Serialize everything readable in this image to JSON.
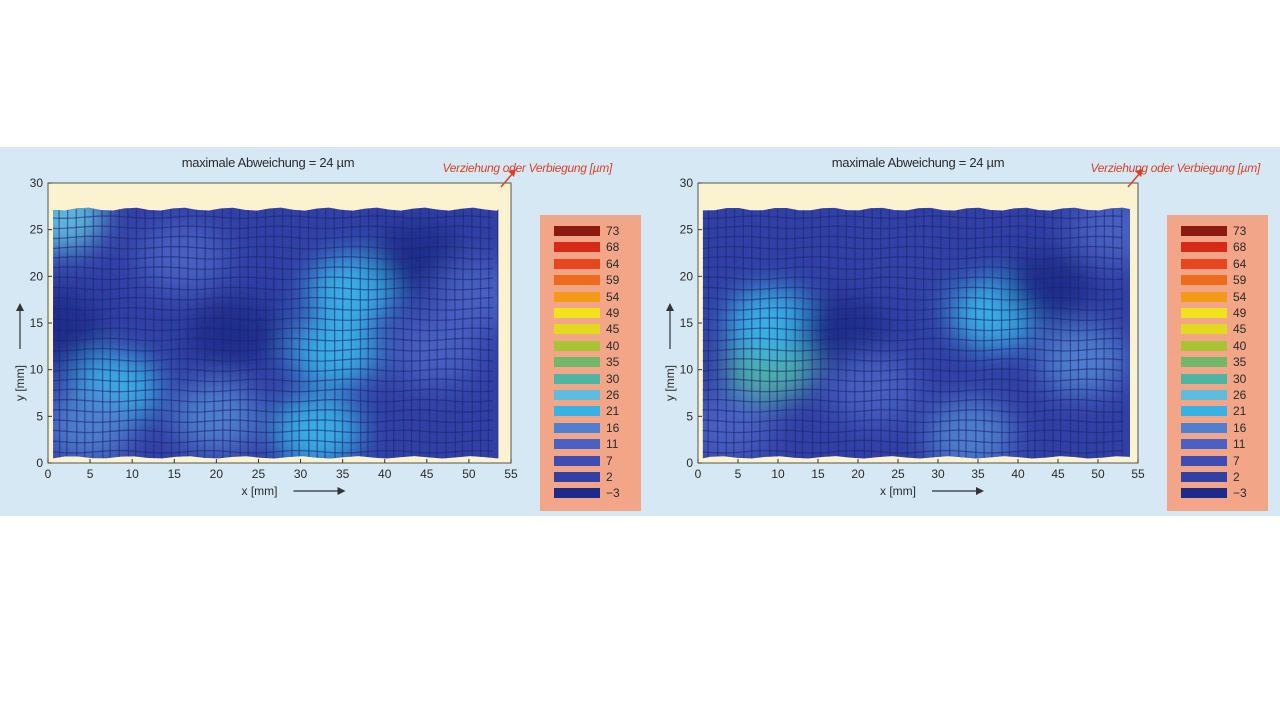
{
  "chart_data": [
    {
      "type": "heatmap",
      "title": "maximale Abweichung = 24 µm",
      "xlabel": "x [mm]",
      "ylabel": "y [mm]",
      "xlim": [
        0,
        55
      ],
      "ylim": [
        0,
        30
      ],
      "x_ticks": [
        "0",
        "5",
        "10",
        "15",
        "20",
        "25",
        "30",
        "35",
        "40",
        "45",
        "50",
        "55"
      ],
      "y_ticks": [
        "0",
        "5",
        "10",
        "15",
        "20",
        "25",
        "30"
      ],
      "colorbar_label": "Verziehung oder Verbiegung [µm]",
      "colorbar_levels": [
        "73",
        "68",
        "64",
        "59",
        "54",
        "49",
        "45",
        "40",
        "35",
        "30",
        "26",
        "21",
        "16",
        "11",
        "7",
        "2",
        "−3"
      ],
      "colorbar_colors": [
        "#8c1a0e",
        "#d72a1a",
        "#e8461e",
        "#ee6b1e",
        "#f39a17",
        "#f2e21c",
        "#e3da1f",
        "#a8c435",
        "#71b86a",
        "#4fb5a3",
        "#5fbcdc",
        "#38b2e6",
        "#4f7fd0",
        "#4861c2",
        "#3f4cb4",
        "#3240a5",
        "#1d2a8a"
      ],
      "surface": {
        "x_range": [
          0.6,
          53.5
        ],
        "y_range": [
          0.5,
          27.2
        ],
        "baseline_value": 2,
        "regions": [
          {
            "x": 1.5,
            "y": 26.5,
            "value": 26
          },
          {
            "x": 1.0,
            "y": 14.5,
            "value": -3
          },
          {
            "x": 8.0,
            "y": 8.0,
            "value": 21
          },
          {
            "x": 5.0,
            "y": 4.0,
            "value": 16
          },
          {
            "x": 16.0,
            "y": 22.0,
            "value": 11
          },
          {
            "x": 20.0,
            "y": 5.0,
            "value": 16
          },
          {
            "x": 22.0,
            "y": 14.0,
            "value": -3
          },
          {
            "x": 34.0,
            "y": 12.0,
            "value": 21
          },
          {
            "x": 32.0,
            "y": 3.5,
            "value": 21
          },
          {
            "x": 36.0,
            "y": 18.5,
            "value": 21
          },
          {
            "x": 44.0,
            "y": 22.0,
            "value": -3
          },
          {
            "x": 46.0,
            "y": 12.0,
            "value": 11
          },
          {
            "x": 51.0,
            "y": 18.0,
            "value": 11
          }
        ]
      }
    },
    {
      "type": "heatmap",
      "title": "maximale Abweichung = 24 µm",
      "xlabel": "x [mm]",
      "ylabel": "y [mm]",
      "xlim": [
        0,
        55
      ],
      "ylim": [
        0,
        30
      ],
      "x_ticks": [
        "0",
        "5",
        "10",
        "15",
        "20",
        "25",
        "30",
        "35",
        "40",
        "45",
        "50",
        "55"
      ],
      "y_ticks": [
        "0",
        "5",
        "10",
        "15",
        "20",
        "25",
        "30"
      ],
      "colorbar_label": "Verziehung oder Verbiegung [µm]",
      "colorbar_levels": [
        "73",
        "68",
        "64",
        "59",
        "54",
        "49",
        "45",
        "40",
        "35",
        "30",
        "26",
        "21",
        "16",
        "11",
        "7",
        "2",
        "−3"
      ],
      "colorbar_colors": [
        "#8c1a0e",
        "#d72a1a",
        "#e8461e",
        "#ee6b1e",
        "#f39a17",
        "#f2e21c",
        "#e3da1f",
        "#a8c435",
        "#71b86a",
        "#4fb5a3",
        "#5fbcdc",
        "#38b2e6",
        "#4f7fd0",
        "#4861c2",
        "#3f4cb4",
        "#3240a5",
        "#1d2a8a"
      ],
      "surface": {
        "x_range": [
          0.6,
          54.0
        ],
        "y_range": [
          0.5,
          27.2
        ],
        "baseline_value": 2,
        "regions": [
          {
            "x": 9.0,
            "y": 10.5,
            "value": 30
          },
          {
            "x": 9.0,
            "y": 15.0,
            "value": 21
          },
          {
            "x": 4.0,
            "y": 4.0,
            "value": 11
          },
          {
            "x": 18.0,
            "y": 14.0,
            "value": -3
          },
          {
            "x": 22.0,
            "y": 8.0,
            "value": 11
          },
          {
            "x": 25.0,
            "y": 21.0,
            "value": 2
          },
          {
            "x": 37.0,
            "y": 16.0,
            "value": 21
          },
          {
            "x": 34.0,
            "y": 3.0,
            "value": 16
          },
          {
            "x": 44.0,
            "y": 19.0,
            "value": -3
          },
          {
            "x": 48.0,
            "y": 11.0,
            "value": 16
          },
          {
            "x": 52.0,
            "y": 25.0,
            "value": 11
          }
        ]
      }
    }
  ]
}
